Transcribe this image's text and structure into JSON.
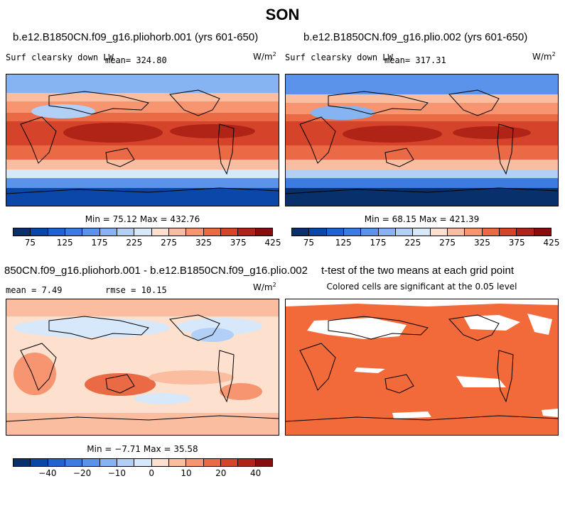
{
  "season": "SON",
  "panels": {
    "p1": {
      "title": "b.e12.B1850CN.f09_g16.pliohorb.001 (yrs 601-650)",
      "variable": "Surf clearsky down LW",
      "mean_text": "mean= 324.80",
      "units_base": "W/m",
      "units_exp": "2",
      "minmax": "Min =  75.12 Max = 432.76"
    },
    "p2": {
      "title": "b.e12.B1850CN.f09_g16.plio.002 (yrs 601-650)",
      "variable": "Surf clearsky down LW",
      "mean_text": "mean= 317.31",
      "units_base": "W/m",
      "units_exp": "2",
      "minmax": "Min =  68.15 Max = 421.39"
    },
    "p3": {
      "title": "850CN.f09_g16.pliohorb.001 - b.e12.B1850CN.f09_g16.plio.002",
      "mean_text": "mean =   7.49",
      "rmse_text": "rmse =  10.15",
      "units_base": "W/m",
      "units_exp": "2",
      "minmax": "Min = −7.71 Max =  35.58"
    },
    "p4": {
      "title": "t-test of the two means at each grid point",
      "subtitle": "Colored cells are significant at the 0.05 level"
    }
  },
  "colorbars": {
    "abs": {
      "colors": [
        "#08306b",
        "#0b47a6",
        "#2261d0",
        "#3d7be0",
        "#5b93ea",
        "#86b3f2",
        "#b2d0f7",
        "#d8e8fb",
        "#fde0cd",
        "#fbbda0",
        "#f69570",
        "#ea6a45",
        "#d4432a",
        "#b02418",
        "#880e0e"
      ],
      "tick_labels": [
        "75",
        "125",
        "175",
        "225",
        "275",
        "325",
        "375",
        "425"
      ]
    },
    "diff": {
      "colors": [
        "#08306b",
        "#0b47a6",
        "#2261d0",
        "#3d7be0",
        "#5b93ea",
        "#86b3f2",
        "#b2d0f7",
        "#d8e8fb",
        "#fde0cd",
        "#fbbda0",
        "#f69570",
        "#ea6a45",
        "#d4432a",
        "#b02418",
        "#880e0e"
      ],
      "tick_labels": [
        "−40",
        "−20",
        "−10",
        "0",
        "10",
        "20",
        "40"
      ]
    }
  },
  "significance_color": "#f2693a"
}
